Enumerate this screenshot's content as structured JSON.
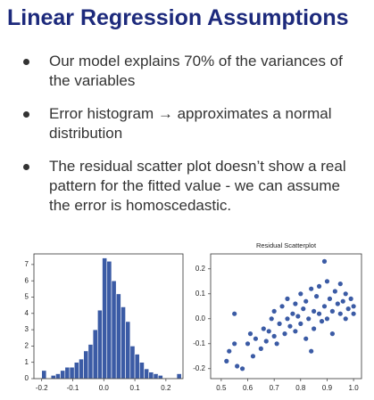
{
  "title": "Linear Regression Assumptions",
  "bullets": [
    "Our model explains 70% of the variances of the variables",
    "Error histogram → approximates a normal distribution",
    "The residual scatter plot doesn’t show a real pattern for the fitted value - we can assume the error is homoscedastic."
  ],
  "chart_data": [
    {
      "type": "histogram",
      "color": "#3b5ba5",
      "bins": [
        -0.2,
        -0.185,
        -0.17,
        -0.155,
        -0.14,
        -0.125,
        -0.11,
        -0.095,
        -0.08,
        -0.065,
        -0.05,
        -0.035,
        -0.02,
        -0.005,
        0.01,
        0.025,
        0.04,
        0.055,
        0.07,
        0.085,
        0.1,
        0.115,
        0.13,
        0.145,
        0.16,
        0.175,
        0.19,
        0.205,
        0.22,
        0.235,
        0.25
      ],
      "values": [
        0.5,
        0,
        0.2,
        0.3,
        0.5,
        0.7,
        0.7,
        1,
        1.2,
        1.7,
        2.1,
        3,
        4.2,
        7.4,
        7.2,
        6,
        5.2,
        4.4,
        3.5,
        2,
        1.5,
        1,
        0.6,
        0.4,
        0.3,
        0.2,
        0,
        0,
        0,
        0.3
      ],
      "xlim": [
        -0.225,
        0.255
      ],
      "ylim": [
        0,
        7.65
      ],
      "xticks": [
        -0.2,
        -0.1,
        {
          "value": 0,
          "label": "0.0"
        },
        0.1,
        0.2
      ],
      "yticks": [
        0,
        1,
        2,
        3,
        4,
        5,
        6,
        7
      ]
    },
    {
      "type": "scatter",
      "title": "Residual Scatterplot",
      "color": "#3b5ba5",
      "x": [
        0.52,
        0.53,
        0.55,
        0.56,
        0.58,
        0.6,
        0.61,
        0.62,
        0.63,
        0.65,
        0.66,
        0.67,
        0.68,
        0.69,
        0.7,
        0.7,
        0.71,
        0.72,
        0.73,
        0.74,
        0.75,
        0.75,
        0.76,
        0.77,
        0.78,
        0.78,
        0.79,
        0.8,
        0.8,
        0.81,
        0.82,
        0.82,
        0.83,
        0.84,
        0.85,
        0.85,
        0.86,
        0.87,
        0.87,
        0.88,
        0.89,
        0.9,
        0.9,
        0.91,
        0.92,
        0.92,
        0.93,
        0.94,
        0.95,
        0.95,
        0.96,
        0.97,
        0.97,
        0.98,
        0.99,
        1.0,
        1.0,
        0.89,
        0.55,
        0.84
      ],
      "values": [
        -0.17,
        -0.13,
        0.02,
        -0.19,
        -0.2,
        -0.1,
        -0.06,
        -0.15,
        -0.08,
        -0.12,
        -0.04,
        -0.09,
        -0.05,
        0.0,
        -0.07,
        0.03,
        -0.1,
        -0.02,
        0.05,
        -0.06,
        0.0,
        0.08,
        -0.03,
        0.02,
        0.06,
        -0.05,
        0.01,
        0.1,
        -0.02,
        0.04,
        0.07,
        -0.08,
        0.0,
        0.12,
        0.03,
        -0.04,
        0.09,
        0.02,
        0.13,
        -0.01,
        0.05,
        0.15,
        0.0,
        0.08,
        0.03,
        -0.06,
        0.11,
        0.06,
        0.02,
        0.14,
        0.07,
        0.0,
        0.1,
        0.04,
        0.08,
        0.02,
        0.05,
        0.23,
        -0.1,
        -0.13
      ],
      "xlim": [
        0.46,
        1.03
      ],
      "ylim": [
        -0.24,
        0.26
      ],
      "xticks": [
        0.5,
        0.6,
        0.7,
        0.8,
        0.9,
        {
          "value": 1,
          "label": "1.0"
        }
      ],
      "yticks": [
        -0.2,
        -0.1,
        {
          "value": 0,
          "label": "0.0"
        },
        0.1,
        0.2
      ]
    }
  ]
}
